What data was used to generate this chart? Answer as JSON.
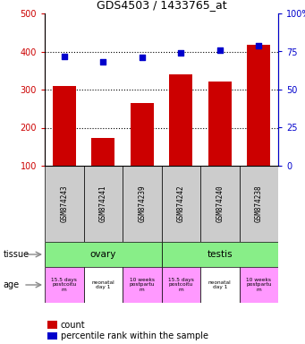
{
  "title": "GDS4503 / 1433765_at",
  "samples": [
    "GSM874243",
    "GSM874241",
    "GSM874239",
    "GSM874242",
    "GSM874240",
    "GSM874238"
  ],
  "counts": [
    310,
    173,
    265,
    340,
    322,
    418
  ],
  "percentiles": [
    72,
    68,
    71,
    74,
    76,
    79
  ],
  "ylim_left": [
    100,
    500
  ],
  "ylim_right": [
    0,
    100
  ],
  "yticks_left": [
    100,
    200,
    300,
    400,
    500
  ],
  "yticks_right": [
    0,
    25,
    50,
    75,
    100
  ],
  "yticklabels_right": [
    "0",
    "25",
    "50",
    "75",
    "100%"
  ],
  "bar_color": "#cc0000",
  "dot_color": "#0000cc",
  "bar_bottom": 100,
  "tissue_info": [
    [
      0,
      3,
      "ovary",
      "#88ee88"
    ],
    [
      3,
      6,
      "testis",
      "#88ee88"
    ]
  ],
  "age_labels": [
    "15.5 days\npostcoitu\nm",
    "neonatal\nday 1",
    "10 weeks\npostpartu\nm",
    "15.5 days\npostcoitu\nm",
    "neonatal\nday 1",
    "10 weeks\npostpartu\nm"
  ],
  "age_colors": [
    "#ff99ff",
    "#ffffff",
    "#ff99ff",
    "#ff99ff",
    "#ffffff",
    "#ff99ff"
  ],
  "sample_box_color": "#cccccc",
  "legend_count_label": "count",
  "legend_pct_label": "percentile rank within the sample"
}
